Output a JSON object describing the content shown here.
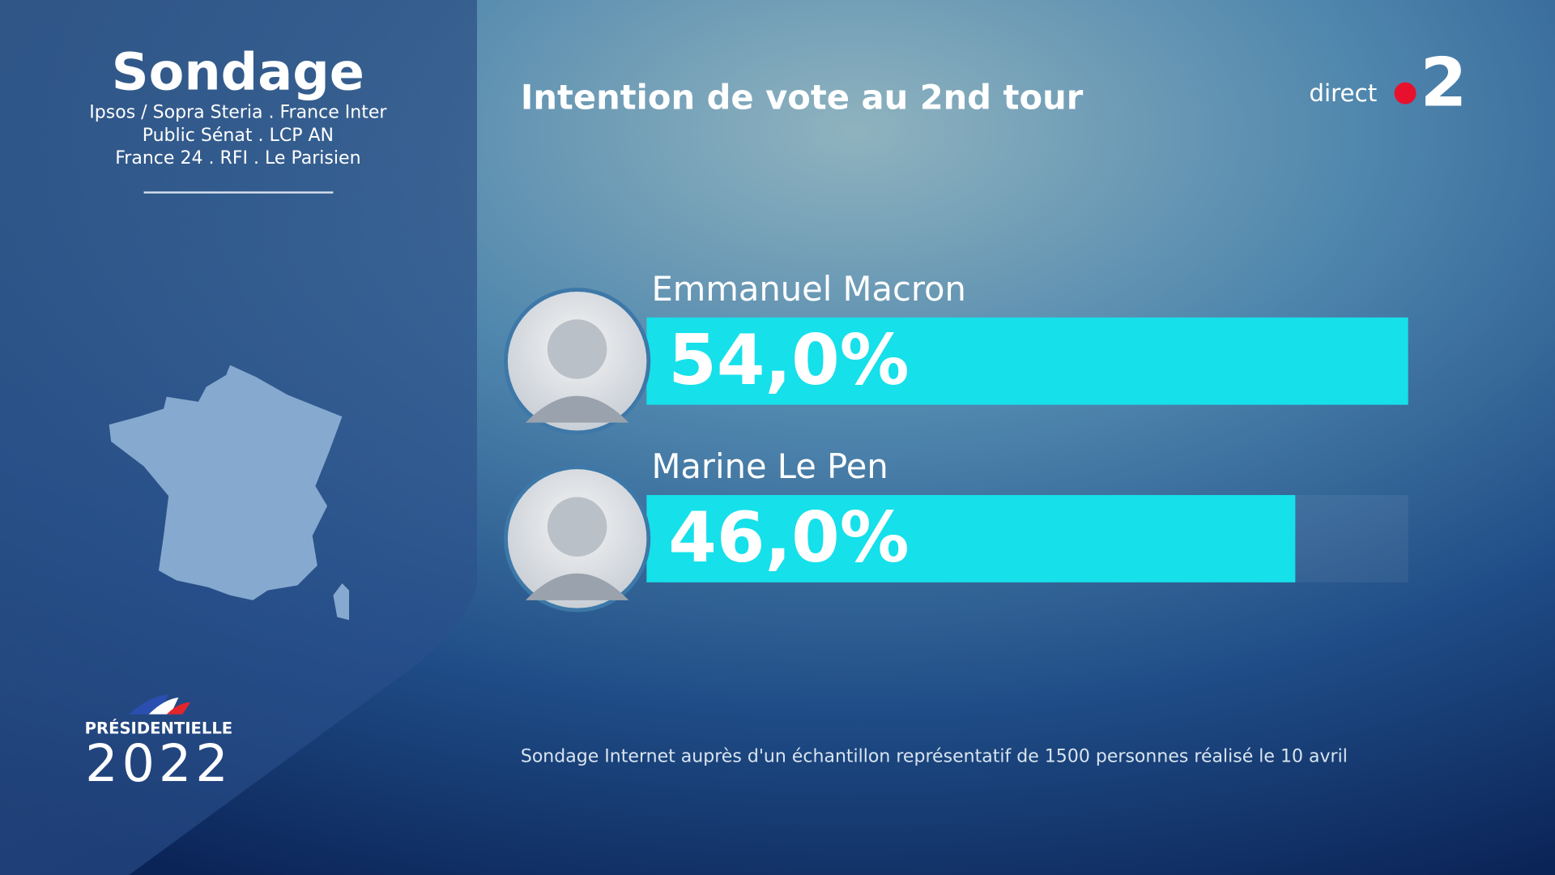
{
  "chart_data": {
    "type": "bar",
    "orientation": "horizontal",
    "title": "Intention de vote au 2nd tour",
    "categories": [
      "Emmanuel Macron",
      "Marine Le Pen"
    ],
    "values": [
      54,
      46
    ],
    "value_labels": [
      "54,0%",
      "46,0%"
    ],
    "color": "#16e0ea",
    "footnote": "Sondage Internet auprès d'un échantillon représentatif de 1500 personnes réalisé le 10 avril"
  },
  "panel": {
    "title": "Sondage",
    "sources": [
      "Ipsos / Sopra Steria . France Inter",
      "Public Sénat . LCP AN",
      "France 24 . RFI . Le Parisien"
    ]
  },
  "branding": {
    "channel": "direct",
    "number": "2",
    "election": "PRÉSIDENTIELLE",
    "year": "2022"
  }
}
